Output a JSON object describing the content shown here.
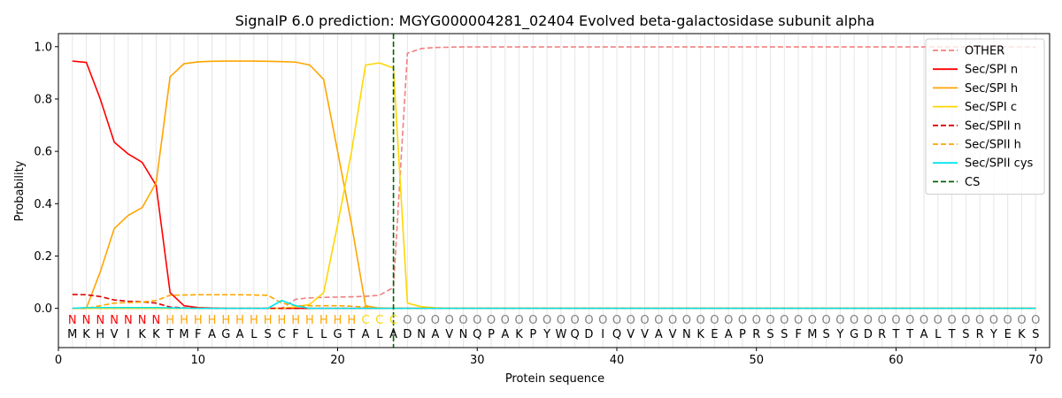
{
  "chart_data": {
    "type": "line",
    "title": "SignalP 6.0 prediction: MGYG000004281_02404 Evolved beta-galactosidase subunit alpha",
    "xlabel": "Protein sequence",
    "ylabel": "Probability",
    "xlim": [
      0,
      71
    ],
    "ylim": [
      -0.15,
      1.05
    ],
    "xticks": [
      0,
      10,
      20,
      30,
      40,
      50,
      60,
      70
    ],
    "yticks": [
      0.0,
      0.2,
      0.4,
      0.6,
      0.8,
      1.0
    ],
    "xtick_labels": [
      "0",
      "10",
      "20",
      "30",
      "40",
      "50",
      "60",
      "70"
    ],
    "ytick_labels": [
      "0.0",
      "0.2",
      "0.4",
      "0.6",
      "0.8",
      "1.0"
    ],
    "legend_position": "top-right",
    "sequence": [
      "M",
      "K",
      "H",
      "V",
      "I",
      "K",
      "K",
      "T",
      "M",
      "F",
      "A",
      "G",
      "A",
      "L",
      "S",
      "C",
      "F",
      "L",
      "L",
      "G",
      "T",
      "A",
      "L",
      "A",
      "D",
      "N",
      "A",
      "V",
      "N",
      "Q",
      "P",
      "A",
      "K",
      "P",
      "Y",
      "W",
      "Q",
      "D",
      "I",
      "Q",
      "V",
      "V",
      "A",
      "V",
      "N",
      "K",
      "E",
      "A",
      "P",
      "R",
      "S",
      "S",
      "F",
      "M",
      "S",
      "Y",
      "G",
      "D",
      "R",
      "T",
      "T",
      "A",
      "L",
      "T",
      "S",
      "R",
      "Y",
      "E",
      "K",
      "S"
    ],
    "region_labels": [
      "N",
      "N",
      "N",
      "N",
      "N",
      "N",
      "N",
      "H",
      "H",
      "H",
      "H",
      "H",
      "H",
      "H",
      "H",
      "H",
      "H",
      "H",
      "H",
      "H",
      "H",
      "C",
      "C",
      "C",
      "O",
      "O",
      "O",
      "O",
      "O",
      "O",
      "O",
      "O",
      "O",
      "O",
      "O",
      "O",
      "O",
      "O",
      "O",
      "O",
      "O",
      "O",
      "O",
      "O",
      "O",
      "O",
      "O",
      "O",
      "O",
      "O",
      "O",
      "O",
      "O",
      "O",
      "O",
      "O",
      "O",
      "O",
      "O",
      "O",
      "O",
      "O",
      "O",
      "O",
      "O",
      "O",
      "O",
      "O",
      "O",
      "O"
    ],
    "region_colors": {
      "N": "#ff0000",
      "H": "#ffa500",
      "C": "#ffd700",
      "O": "#808080"
    },
    "cleavage_site": 24,
    "series": [
      {
        "name": "OTHER",
        "color": "#f08080",
        "dash": "dashed",
        "x": [
          1,
          2,
          3,
          4,
          5,
          6,
          7,
          8,
          9,
          10,
          11,
          12,
          13,
          14,
          15,
          16,
          17,
          18,
          19,
          20,
          21,
          22,
          23,
          24,
          25,
          26,
          27,
          28,
          29,
          30,
          40,
          50,
          60,
          70
        ],
        "values": [
          0.0,
          0.0,
          0.0,
          0.0,
          0.0,
          0.0,
          0.0,
          0.0,
          0.0,
          0.0,
          0.0,
          0.0,
          0.0,
          0.0,
          0.0,
          0.0,
          0.035,
          0.04,
          0.042,
          0.043,
          0.044,
          0.046,
          0.05,
          0.08,
          0.975,
          0.993,
          0.997,
          0.998,
          0.999,
          0.999,
          0.999,
          0.999,
          0.999,
          0.999
        ]
      },
      {
        "name": "Sec/SPI n",
        "color": "#ff0000",
        "dash": "solid",
        "x": [
          1,
          2,
          3,
          4,
          5,
          6,
          7,
          8,
          9,
          10,
          11,
          12,
          13,
          14,
          15,
          16,
          17,
          18,
          19,
          20,
          21,
          22,
          23,
          24,
          25,
          26,
          27,
          28,
          29,
          30,
          40,
          50,
          60,
          70
        ],
        "values": [
          0.945,
          0.94,
          0.8,
          0.635,
          0.59,
          0.558,
          0.47,
          0.06,
          0.01,
          0.003,
          0.001,
          0.0,
          0.0,
          0.0,
          0.0,
          0.0,
          0.0,
          0.0,
          0.0,
          0.0,
          0.0,
          0.0,
          0.0,
          0.0,
          0.0,
          0.0,
          0.0,
          0.0,
          0.0,
          0.0,
          0.0,
          0.0,
          0.0,
          0.0
        ]
      },
      {
        "name": "Sec/SPI h",
        "color": "#ffa500",
        "dash": "solid",
        "x": [
          1,
          2,
          3,
          4,
          5,
          6,
          7,
          8,
          9,
          10,
          11,
          12,
          13,
          14,
          15,
          16,
          17,
          18,
          19,
          20,
          21,
          22,
          23,
          24,
          25,
          26,
          27,
          28,
          29,
          30,
          40,
          50,
          60,
          70
        ],
        "values": [
          0.0,
          0.0,
          0.14,
          0.305,
          0.355,
          0.385,
          0.48,
          0.885,
          0.935,
          0.942,
          0.944,
          0.945,
          0.945,
          0.945,
          0.944,
          0.943,
          0.941,
          0.93,
          0.875,
          0.6,
          0.32,
          0.01,
          0.0,
          0.0,
          0.0,
          0.0,
          0.0,
          0.0,
          0.0,
          0.0,
          0.0,
          0.0,
          0.0,
          0.0
        ]
      },
      {
        "name": "Sec/SPI c",
        "color": "#ffd700",
        "dash": "solid",
        "x": [
          1,
          2,
          3,
          4,
          5,
          6,
          7,
          8,
          9,
          10,
          11,
          12,
          13,
          14,
          15,
          16,
          17,
          18,
          19,
          20,
          21,
          22,
          23,
          24,
          25,
          26,
          27,
          28,
          29,
          30,
          40,
          50,
          60,
          70
        ],
        "values": [
          0.0,
          0.0,
          0.0,
          0.0,
          0.0,
          0.0,
          0.0,
          0.0,
          0.0,
          0.0,
          0.0,
          0.0,
          0.0,
          0.0,
          0.0,
          0.0,
          0.005,
          0.015,
          0.06,
          0.32,
          0.6,
          0.93,
          0.938,
          0.918,
          0.02,
          0.006,
          0.002,
          0.0,
          0.0,
          0.0,
          0.0,
          0.0,
          0.0,
          0.0
        ]
      },
      {
        "name": "Sec/SPII n",
        "color": "#dd0000",
        "dash": "dashed",
        "x": [
          1,
          2,
          3,
          4,
          5,
          6,
          7,
          8,
          9,
          10,
          11,
          12,
          13,
          14,
          15,
          16,
          17,
          18,
          19,
          20,
          21,
          22,
          23,
          24,
          25,
          26,
          27,
          28,
          29,
          30,
          40,
          50,
          60,
          70
        ],
        "values": [
          0.053,
          0.052,
          0.045,
          0.032,
          0.027,
          0.025,
          0.02,
          0.005,
          0.002,
          0.0,
          0.0,
          0.0,
          0.0,
          0.0,
          0.0,
          0.0,
          0.0,
          0.0,
          0.0,
          0.0,
          0.0,
          0.0,
          0.0,
          0.0,
          0.0,
          0.0,
          0.0,
          0.0,
          0.0,
          0.0,
          0.0,
          0.0,
          0.0,
          0.0
        ]
      },
      {
        "name": "Sec/SPII h",
        "color": "#ffa500",
        "dash": "dashed",
        "x": [
          1,
          2,
          3,
          4,
          5,
          6,
          7,
          8,
          9,
          10,
          11,
          12,
          13,
          14,
          15,
          16,
          17,
          18,
          19,
          20,
          21,
          22,
          23,
          24,
          25,
          26,
          27,
          28,
          29,
          30,
          40,
          50,
          60,
          70
        ],
        "values": [
          0.0,
          0.0,
          0.01,
          0.02,
          0.022,
          0.024,
          0.03,
          0.05,
          0.051,
          0.052,
          0.052,
          0.052,
          0.052,
          0.051,
          0.05,
          0.02,
          0.01,
          0.01,
          0.01,
          0.01,
          0.008,
          0.005,
          0.002,
          0.0,
          0.0,
          0.0,
          0.0,
          0.0,
          0.0,
          0.0,
          0.0,
          0.0,
          0.0,
          0.0
        ]
      },
      {
        "name": "Sec/SPII cys",
        "color": "#00e5ee",
        "dash": "solid",
        "x": [
          1,
          2,
          3,
          4,
          5,
          6,
          7,
          8,
          9,
          10,
          11,
          12,
          13,
          14,
          15,
          16,
          17,
          18,
          19,
          20,
          21,
          22,
          23,
          24,
          25,
          26,
          27,
          28,
          29,
          30,
          40,
          50,
          60,
          70
        ],
        "values": [
          0.0,
          0.003,
          0.003,
          0.003,
          0.003,
          0.003,
          0.003,
          0.002,
          0.001,
          0.0,
          0.0,
          0.0,
          0.0,
          0.0,
          0.0,
          0.03,
          0.01,
          0.0,
          0.0,
          0.0,
          0.0,
          0.0,
          0.0,
          0.0,
          0.0,
          0.0,
          0.0,
          0.0,
          0.0,
          0.0,
          0.0,
          0.0,
          0.0,
          0.0
        ]
      }
    ],
    "legend": [
      {
        "label": "OTHER",
        "color": "#f08080",
        "dash": "dashed"
      },
      {
        "label": "Sec/SPI n",
        "color": "#ff0000",
        "dash": "solid"
      },
      {
        "label": "Sec/SPI h",
        "color": "#ffa500",
        "dash": "solid"
      },
      {
        "label": "Sec/SPI c",
        "color": "#ffd700",
        "dash": "solid"
      },
      {
        "label": "Sec/SPII n",
        "color": "#dd0000",
        "dash": "dashed"
      },
      {
        "label": "Sec/SPII h",
        "color": "#ffa500",
        "dash": "dashed"
      },
      {
        "label": "Sec/SPII cys",
        "color": "#00e5ee",
        "dash": "solid"
      },
      {
        "label": "CS",
        "color": "#006400",
        "dash": "dashed"
      }
    ]
  }
}
